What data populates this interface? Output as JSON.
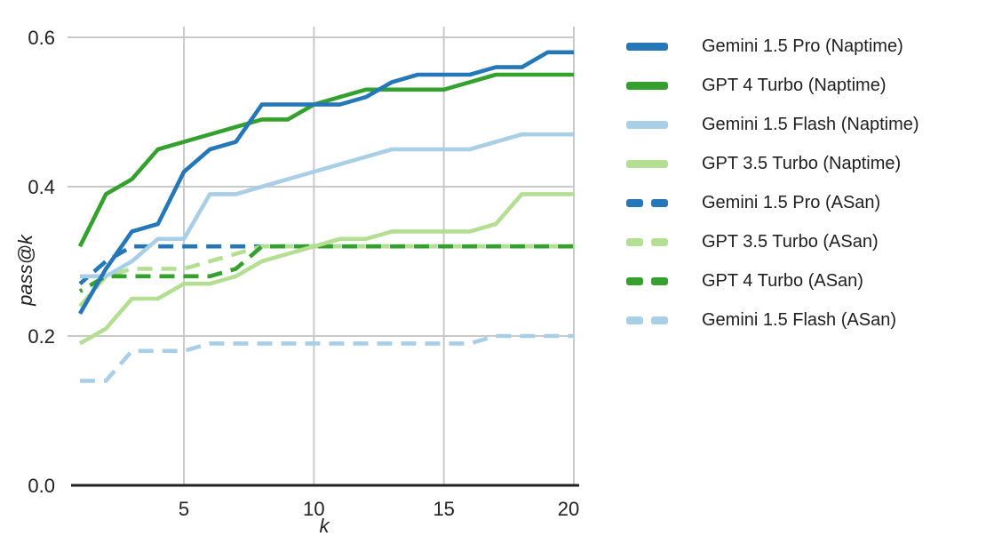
{
  "chart_data": {
    "type": "line",
    "title": "",
    "xlabel": "k",
    "ylabel": "pass@k",
    "xlim": [
      1,
      20
    ],
    "ylim": [
      0.0,
      0.6
    ],
    "x_ticks": [
      5,
      10,
      15,
      20
    ],
    "y_ticks": [
      0.0,
      0.2,
      0.4,
      0.6
    ],
    "grid": true,
    "legend_position": "right",
    "axis_color": "#212121",
    "grid_color": "#c9c9c9",
    "x": [
      1,
      2,
      3,
      4,
      5,
      6,
      7,
      8,
      9,
      10,
      11,
      12,
      13,
      14,
      15,
      16,
      17,
      18,
      19,
      20
    ],
    "series": [
      {
        "name": "Gemini 1.5 Pro (Naptime)",
        "color": "#2677b8",
        "dash": false,
        "values": [
          0.23,
          0.29,
          0.34,
          0.35,
          0.42,
          0.45,
          0.46,
          0.51,
          0.51,
          0.51,
          0.51,
          0.52,
          0.54,
          0.55,
          0.55,
          0.55,
          0.56,
          0.56,
          0.58,
          0.58
        ]
      },
      {
        "name": "GPT 4 Turbo (Naptime)",
        "color": "#34a12e",
        "dash": false,
        "values": [
          0.32,
          0.39,
          0.41,
          0.45,
          0.46,
          0.47,
          0.48,
          0.49,
          0.49,
          0.51,
          0.52,
          0.53,
          0.53,
          0.53,
          0.53,
          0.54,
          0.55,
          0.55,
          0.55,
          0.55
        ]
      },
      {
        "name": "Gemini 1.5 Flash (Naptime)",
        "color": "#a9cfe6",
        "dash": false,
        "values": [
          0.28,
          0.28,
          0.3,
          0.33,
          0.33,
          0.39,
          0.39,
          0.4,
          0.41,
          0.42,
          0.43,
          0.44,
          0.45,
          0.45,
          0.45,
          0.45,
          0.46,
          0.47,
          0.47,
          0.47
        ]
      },
      {
        "name": "GPT 3.5 Turbo (Naptime)",
        "color": "#b4df92",
        "dash": false,
        "values": [
          0.19,
          0.21,
          0.25,
          0.25,
          0.27,
          0.27,
          0.28,
          0.3,
          0.31,
          0.32,
          0.33,
          0.33,
          0.34,
          0.34,
          0.34,
          0.34,
          0.35,
          0.39,
          0.39,
          0.39
        ]
      },
      {
        "name": "Gemini 1.5 Pro (ASan)",
        "color": "#2677b8",
        "dash": true,
        "values": [
          0.27,
          0.3,
          0.32,
          0.32,
          0.32,
          0.32,
          0.32,
          0.32,
          0.32,
          0.32,
          0.32,
          0.32,
          0.32,
          0.32,
          0.32,
          0.32,
          0.32,
          0.32,
          0.32,
          0.32
        ]
      },
      {
        "name": "GPT 3.5 Turbo (ASan)",
        "color": "#b4df92",
        "dash": true,
        "values": [
          0.24,
          0.28,
          0.29,
          0.29,
          0.29,
          0.3,
          0.31,
          0.32,
          0.32,
          0.32,
          0.32,
          0.32,
          0.32,
          0.32,
          0.32,
          0.32,
          0.32,
          0.32,
          0.32,
          0.32
        ]
      },
      {
        "name": "GPT 4 Turbo (ASan)",
        "color": "#34a12e",
        "dash": true,
        "values": [
          0.26,
          0.28,
          0.28,
          0.28,
          0.28,
          0.28,
          0.29,
          0.32,
          0.32,
          0.32,
          0.32,
          0.32,
          0.32,
          0.32,
          0.32,
          0.32,
          0.32,
          0.32,
          0.32,
          0.32
        ]
      },
      {
        "name": "Gemini 1.5 Flash (ASan)",
        "color": "#a9cfe6",
        "dash": true,
        "values": [
          0.14,
          0.14,
          0.18,
          0.18,
          0.18,
          0.19,
          0.19,
          0.19,
          0.19,
          0.19,
          0.19,
          0.19,
          0.19,
          0.19,
          0.19,
          0.19,
          0.2,
          0.2,
          0.2,
          0.2
        ]
      }
    ]
  }
}
